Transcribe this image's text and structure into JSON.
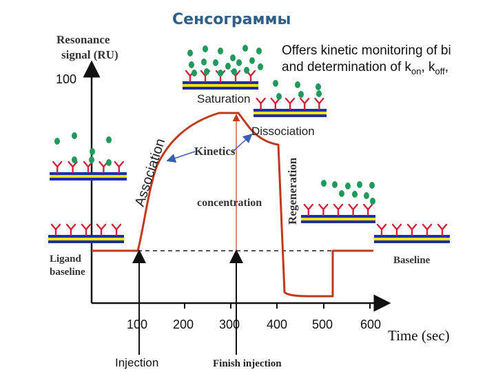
{
  "title": "Сенсограммы",
  "description": {
    "line1": "Offers kinetic monitoring of bi",
    "line2_prefix": "and determination of k",
    "kon_sub": "on",
    "sep": ", k",
    "koff_sub": "off",
    "tail": ","
  },
  "axes": {
    "y_label_line1": "Resonance",
    "y_label_line2": "signal (RU)",
    "y_tick": "100",
    "x_label": "Time (sec)",
    "x_ticks": [
      "100",
      "200",
      "300",
      "400",
      "500",
      "600"
    ]
  },
  "phases": {
    "ligand_baseline_line1": "Ligand",
    "ligand_baseline_line2": "baseline",
    "association": "Association",
    "saturation": "Saturation",
    "dissociation": "Dissociation",
    "regeneration": "Regeneration",
    "baseline": "Baseline",
    "kinetics": "Kinetics",
    "concentration": "concentration",
    "injection": "Injection",
    "finish_injection": "Finish injection"
  },
  "colors": {
    "curve": "#c0391e",
    "title": "#2f5f86",
    "receptor": "#d0233a",
    "analyte": "#1f9a5a",
    "chip_blue": "#1c2fa8",
    "chip_yellow": "#f0e400",
    "kinetics_arrow": "#3a5fb0"
  }
}
